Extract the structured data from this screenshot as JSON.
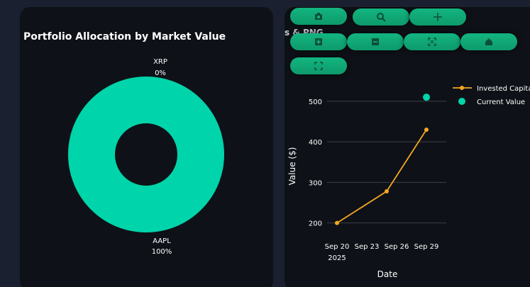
{
  "colors": {
    "page_bg": "#1b2030",
    "panel_bg": "#0e1117",
    "donut": "#00d4aa",
    "invested": "#f5a623",
    "current": "#00d4aa",
    "grid": "#3a3f4a",
    "text": "#ffffff",
    "toolbar": "#13b580"
  },
  "toolbar": {
    "buttons": [
      {
        "name": "camera-icon"
      },
      {
        "name": "zoom-icon"
      },
      {
        "name": "pan-icon"
      },
      {
        "name": "zoom-in-icon"
      },
      {
        "name": "zoom-out-icon"
      },
      {
        "name": "autoscale-icon"
      },
      {
        "name": "reset-axes-icon"
      },
      {
        "name": "fullscreen-icon"
      }
    ]
  },
  "chart_data": [
    {
      "type": "pie",
      "title": "Portfolio Allocation by Market Value",
      "hole": true,
      "slices": [
        {
          "label": "XRP",
          "percent_label": "0%",
          "value": 0
        },
        {
          "label": "AAPL",
          "percent_label": "100%",
          "value": 100
        }
      ]
    },
    {
      "type": "line",
      "title": "",
      "partial_title": "s & PNG",
      "xlabel": "Date",
      "ylabel": "Value ($)",
      "ylim": [
        168,
        540
      ],
      "yticks": [
        200,
        300,
        400,
        500
      ],
      "xticks": [
        {
          "date": "2025-09-20",
          "line1": "Sep 20",
          "line2": "2025"
        },
        {
          "date": "2025-09-23",
          "line1": "Sep 23",
          "line2": ""
        },
        {
          "date": "2025-09-26",
          "line1": "Sep 26",
          "line2": ""
        },
        {
          "date": "2025-09-29",
          "line1": "Sep 29",
          "line2": ""
        }
      ],
      "xlim": [
        "2025-09-19",
        "2025-10-01"
      ],
      "legend_position": "top-right",
      "series": [
        {
          "name": "Invested Capital",
          "mode": "lines+markers",
          "points": [
            {
              "x": "2025-09-20",
              "y": 200
            },
            {
              "x": "2025-09-25",
              "y": 278
            },
            {
              "x": "2025-09-29",
              "y": 430
            }
          ]
        },
        {
          "name": "Current Value",
          "mode": "markers",
          "points": [
            {
              "x": "2025-09-29",
              "y": 510
            }
          ]
        }
      ]
    }
  ]
}
